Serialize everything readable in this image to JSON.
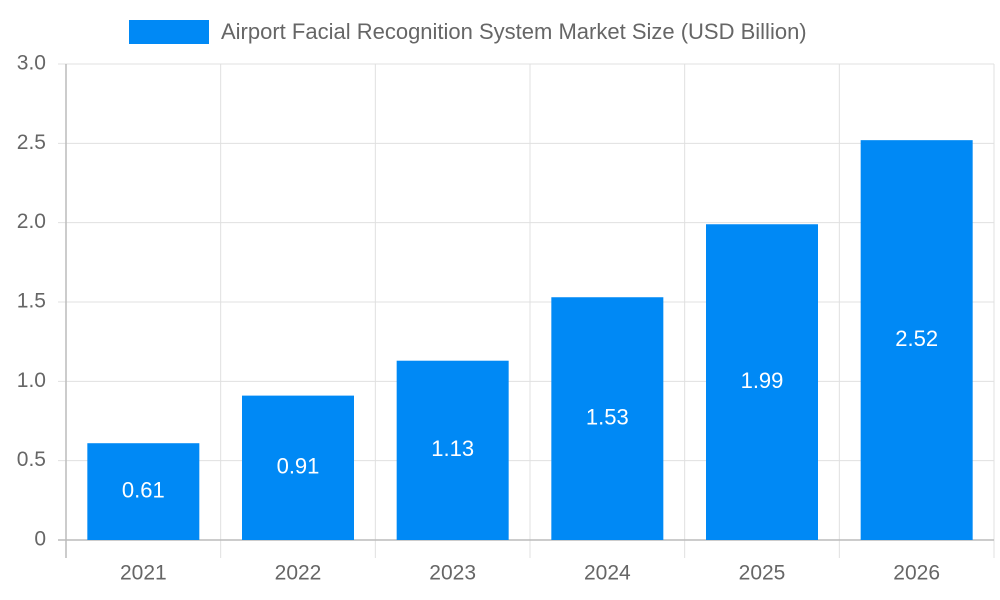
{
  "chart_data": {
    "type": "bar",
    "categories": [
      "2021",
      "2022",
      "2023",
      "2024",
      "2025",
      "2026"
    ],
    "series": [
      {
        "name": "Airport Facial Recognition System Market Size (USD Billion)",
        "color": "#0089f5",
        "values": [
          0.61,
          0.91,
          1.13,
          1.53,
          1.99,
          2.52
        ]
      }
    ],
    "ylim": [
      0,
      3
    ],
    "yticks": [
      0,
      0.5,
      {
        "value": 1,
        "label": "1.0"
      },
      1.5,
      {
        "value": 2,
        "label": "2.0"
      },
      2.5,
      {
        "value": 3,
        "label": "3.0"
      }
    ],
    "grid": true,
    "legend": "top"
  }
}
